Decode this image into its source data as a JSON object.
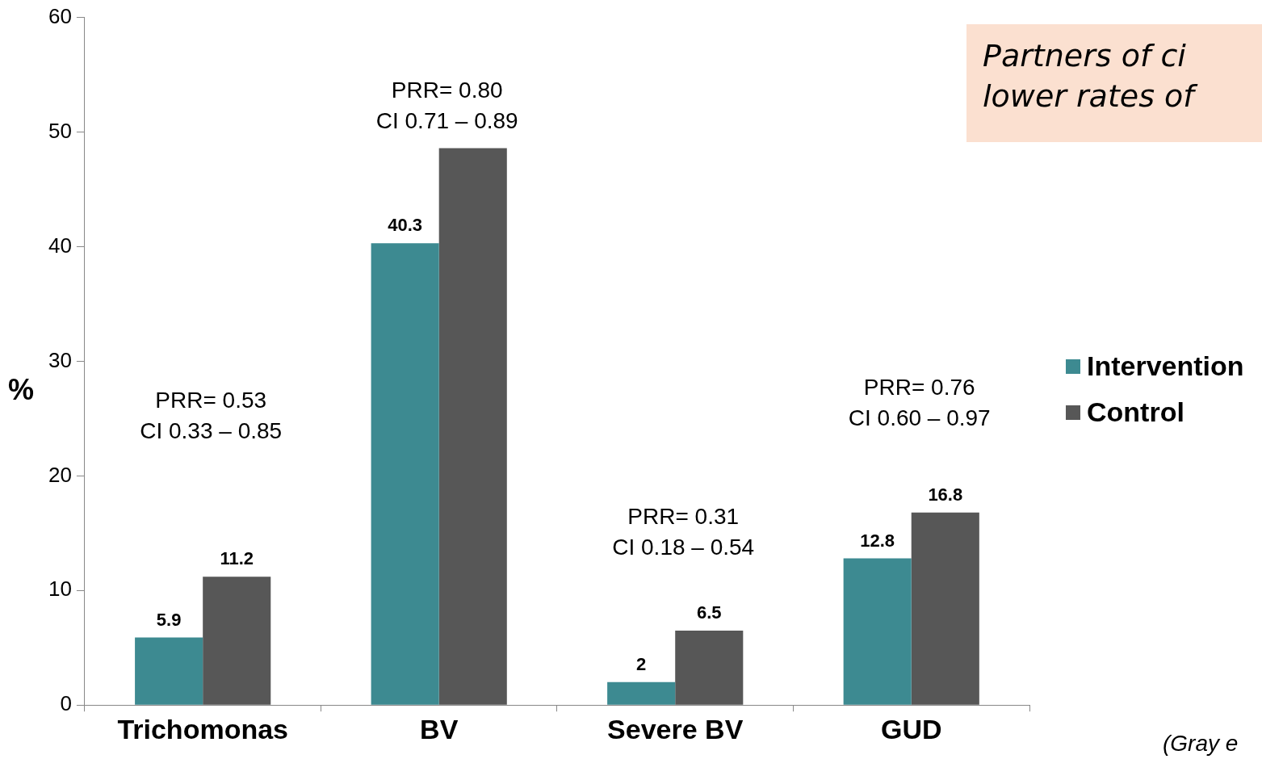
{
  "chart_data": {
    "type": "bar",
    "ylabel": "%",
    "categories": [
      "Trichomonas",
      "BV",
      "Severe BV",
      "GUD"
    ],
    "series": [
      {
        "name": "Intervention",
        "color": "#3d8a91",
        "values": [
          5.9,
          40.3,
          2,
          12.8
        ],
        "value_labels": [
          "5.9",
          "40.3",
          "2",
          "12.8"
        ]
      },
      {
        "name": "Control",
        "color": "#575757",
        "values": [
          11.2,
          48.6,
          6.5,
          16.8
        ],
        "value_labels": [
          "11.2",
          null,
          "6.5",
          "16.8"
        ]
      }
    ],
    "ylim": [
      0,
      60
    ],
    "yticks": [
      0,
      10,
      20,
      30,
      40,
      50,
      60
    ],
    "grid": false,
    "legend": "right",
    "annotations": [
      "PRR= 0.53\nCI 0.33 – 0.85",
      "PRR= 0.80\nCI 0.71 – 0.89",
      "PRR= 0.31\nCI 0.18 – 0.54",
      "PRR= 0.76\nCI 0.60 – 0.97",
      "Partners of ci\nlower rates of",
      "(Gray e"
    ]
  }
}
